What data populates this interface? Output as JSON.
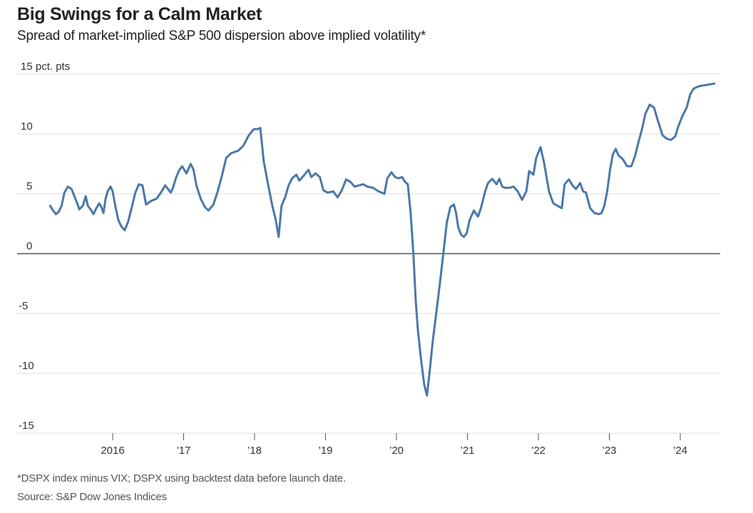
{
  "header": {
    "title": "Big Swings for a Calm Market",
    "subtitle": "Spread of market-implied S&P 500 dispersion above implied volatility*"
  },
  "footer": {
    "note": "*DSPX index minus VIX; DSPX using backtest data before launch date.",
    "source": "Source: S&P Dow Jones Indices"
  },
  "colors": {
    "line": "#4a78a8",
    "zero_line": "#555555",
    "grid": "#dddddd"
  },
  "chart_data": {
    "type": "line",
    "title": "Big Swings for a Calm Market",
    "subtitle": "Spread of market-implied S&P 500 dispersion above implied volatility*",
    "xlabel": "",
    "ylabel": "pct. pts",
    "ylim": [
      -15,
      15
    ],
    "xlim": [
      2015.0,
      2024.6
    ],
    "grid": true,
    "legend": "none",
    "y_ticks": [
      {
        "value": 15,
        "label": "15 pct. pts"
      },
      {
        "value": 10,
        "label": "10"
      },
      {
        "value": 5,
        "label": "5"
      },
      {
        "value": 0,
        "label": "0"
      },
      {
        "value": -5,
        "label": "-5"
      },
      {
        "value": -10,
        "label": "-10"
      },
      {
        "value": -15,
        "label": "-15"
      }
    ],
    "x_ticks": [
      {
        "value": 2016,
        "label": "2016"
      },
      {
        "value": 2017,
        "label": "’17"
      },
      {
        "value": 2018,
        "label": "’18"
      },
      {
        "value": 2019,
        "label": "’19"
      },
      {
        "value": 2020,
        "label": "’20"
      },
      {
        "value": 2021,
        "label": "’21"
      },
      {
        "value": 2022,
        "label": "’22"
      },
      {
        "value": 2023,
        "label": "’23"
      },
      {
        "value": 2024,
        "label": "’24"
      }
    ],
    "series": [
      {
        "name": "DSPX minus VIX",
        "x": [
          2015.12,
          2015.16,
          2015.2,
          2015.24,
          2015.28,
          2015.32,
          2015.37,
          2015.42,
          2015.46,
          2015.5,
          2015.53,
          2015.58,
          2015.62,
          2015.65,
          2015.7,
          2015.73,
          2015.77,
          2015.81,
          2015.84,
          2015.87,
          2015.9,
          2015.93,
          2015.97,
          2016.0,
          2016.04,
          2016.08,
          2016.12,
          2016.17,
          2016.22,
          2016.27,
          2016.32,
          2016.37,
          2016.42,
          2016.47,
          2016.54,
          2016.62,
          2016.68,
          2016.74,
          2016.78,
          2016.82,
          2016.85,
          2016.89,
          2016.94,
          2016.98,
          2017.04,
          2017.1,
          2017.14,
          2017.18,
          2017.24,
          2017.3,
          2017.35,
          2017.42,
          2017.48,
          2017.54,
          2017.6,
          2017.67,
          2017.77,
          2017.84,
          2017.92,
          2017.99,
          2018.04,
          2018.08,
          2018.13,
          2018.19,
          2018.25,
          2018.3,
          2018.34,
          2018.38,
          2018.43,
          2018.48,
          2018.53,
          2018.59,
          2018.63,
          2018.69,
          2018.76,
          2018.8,
          2018.86,
          2018.92,
          2018.97,
          2019.03,
          2019.11,
          2019.17,
          2019.23,
          2019.29,
          2019.35,
          2019.41,
          2019.47,
          2019.53,
          2019.59,
          2019.67,
          2019.75,
          2019.83,
          2019.87,
          2019.93,
          2019.98,
          2020.03,
          2020.08,
          2020.12,
          2020.16,
          2020.2,
          2020.24,
          2020.27,
          2020.3,
          2020.34,
          2020.39,
          2020.43,
          2020.47,
          2020.51,
          2020.56,
          2020.61,
          2020.66,
          2020.71,
          2020.76,
          2020.81,
          2020.84,
          2020.87,
          2020.91,
          2020.95,
          2020.99,
          2021.03,
          2021.09,
          2021.15,
          2021.19,
          2021.25,
          2021.29,
          2021.35,
          2021.41,
          2021.45,
          2021.49,
          2021.53,
          2021.59,
          2021.65,
          2021.71,
          2021.77,
          2021.83,
          2021.87,
          2021.93,
          2021.97,
          2022.03,
          2022.08,
          2022.15,
          2022.21,
          2022.27,
          2022.33,
          2022.37,
          2022.43,
          2022.48,
          2022.53,
          2022.59,
          2022.63,
          2022.67,
          2022.73,
          2022.79,
          2022.85,
          2022.89,
          2022.93,
          2022.97,
          2023.01,
          2023.05,
          2023.09,
          2023.13,
          2023.19,
          2023.25,
          2023.31,
          2023.36,
          2023.41,
          2023.46,
          2023.51,
          2023.57,
          2023.63,
          2023.69,
          2023.75,
          2023.81,
          2023.87,
          2023.93,
          2023.97,
          2024.03,
          2024.09,
          2024.14,
          2024.19,
          2024.27,
          2024.48
        ],
        "values": [
          4.0,
          3.6,
          3.3,
          3.5,
          4.0,
          5.1,
          5.6,
          5.4,
          4.8,
          4.2,
          3.7,
          4.0,
          4.8,
          4.0,
          3.6,
          3.3,
          3.8,
          4.2,
          3.9,
          3.4,
          4.6,
          5.2,
          5.6,
          5.2,
          3.9,
          2.8,
          2.3,
          1.95,
          2.7,
          3.9,
          5.1,
          5.8,
          5.7,
          4.1,
          4.4,
          4.6,
          5.1,
          5.7,
          5.4,
          5.1,
          5.5,
          6.3,
          7.0,
          7.3,
          6.7,
          7.5,
          7.0,
          5.7,
          4.6,
          3.9,
          3.6,
          4.1,
          5.2,
          6.5,
          8.0,
          8.4,
          8.6,
          9.0,
          9.9,
          10.4,
          10.4,
          10.5,
          7.7,
          5.8,
          4.0,
          2.8,
          1.4,
          4.0,
          4.7,
          5.7,
          6.3,
          6.6,
          6.1,
          6.5,
          7.0,
          6.4,
          6.7,
          6.4,
          5.3,
          5.1,
          5.2,
          4.7,
          5.3,
          6.2,
          6.0,
          5.6,
          5.7,
          5.8,
          5.6,
          5.5,
          5.2,
          5.0,
          6.3,
          6.8,
          6.4,
          6.3,
          6.4,
          6.0,
          5.8,
          3.4,
          -0.2,
          -3.8,
          -6.2,
          -8.5,
          -10.9,
          -11.85,
          -9.7,
          -7.4,
          -5.0,
          -2.6,
          0.0,
          2.6,
          3.9,
          4.1,
          3.4,
          2.2,
          1.6,
          1.4,
          1.7,
          2.8,
          3.6,
          3.1,
          3.8,
          5.2,
          5.9,
          6.25,
          5.8,
          6.25,
          5.6,
          5.5,
          5.5,
          5.6,
          5.2,
          4.5,
          5.2,
          6.9,
          6.6,
          8.0,
          8.9,
          7.6,
          5.2,
          4.2,
          4.0,
          3.8,
          5.8,
          6.2,
          5.7,
          5.4,
          5.9,
          5.2,
          5.1,
          3.8,
          3.4,
          3.3,
          3.4,
          4.0,
          5.2,
          7.0,
          8.3,
          8.75,
          8.2,
          7.9,
          7.3,
          7.3,
          8.1,
          9.3,
          10.4,
          11.7,
          12.45,
          12.2,
          11.0,
          9.9,
          9.6,
          9.5,
          9.8,
          10.6,
          11.5,
          12.2,
          13.3,
          13.8,
          14.0,
          14.2
        ]
      }
    ],
    "annotations": [
      "*DSPX index minus VIX; DSPX using backtest data before launch date.",
      "Source: S&P Dow Jones Indices"
    ]
  }
}
